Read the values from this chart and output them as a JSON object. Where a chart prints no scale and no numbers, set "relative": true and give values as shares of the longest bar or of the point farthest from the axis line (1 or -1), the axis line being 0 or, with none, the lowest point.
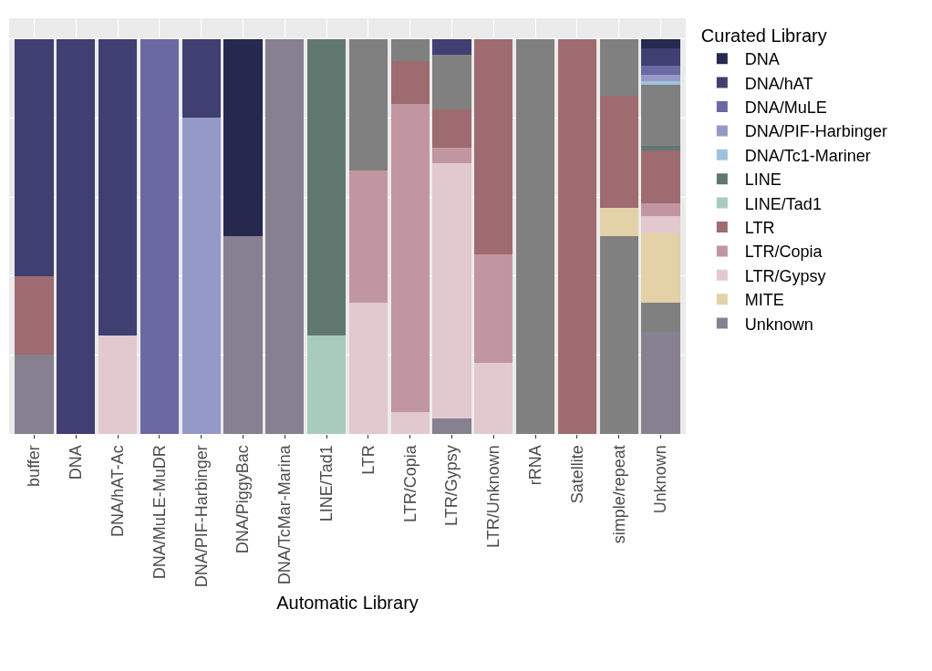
{
  "chart_data": {
    "type": "bar",
    "stacked": true,
    "relative": true,
    "xlabel": "Automatic Library",
    "legend_title": "Curated Library",
    "legend": "right",
    "grid": true,
    "categories": [
      "buffer",
      "DNA",
      "DNA/hAT-Ac",
      "DNA/MuLE-MuDR",
      "DNA/PIF-Harbinger",
      "DNA/PiggyBac",
      "DNA/TcMar-Marina",
      "LINE/Tad1",
      "LTR",
      "LTR/Copia",
      "LTR/Gypsy",
      "LTR/Unknown",
      "rRNA",
      "Satellite",
      "simple/repeat",
      "Unknown"
    ],
    "series": [
      {
        "name": "Unknown",
        "color": "#878090",
        "values": [
          0.2,
          null,
          null,
          null,
          null,
          0.5,
          1,
          null,
          null,
          null,
          0.039,
          null,
          null,
          null,
          null,
          0.258
        ]
      },
      {
        "color": "#808080",
        "values": [
          null,
          null,
          null,
          null,
          null,
          null,
          null,
          null,
          null,
          null,
          null,
          null,
          1,
          null,
          0.5,
          0.074
        ]
      },
      {
        "name": "MITE",
        "color": "#e3d1a7",
        "values": [
          null,
          null,
          null,
          null,
          null,
          null,
          null,
          null,
          null,
          null,
          null,
          null,
          null,
          null,
          0.073,
          0.175
        ]
      },
      {
        "name": "LTR/Gypsy",
        "color": "#e2c9cf",
        "values": [
          null,
          null,
          0.25,
          null,
          null,
          null,
          null,
          null,
          0.333,
          0.055,
          0.647,
          0.181,
          null,
          null,
          null,
          0.044
        ]
      },
      {
        "name": "LTR/Copia",
        "color": "#c196a0",
        "values": [
          null,
          null,
          null,
          null,
          null,
          null,
          null,
          null,
          0.333,
          0.78,
          0.039,
          0.274,
          null,
          null,
          null,
          0.034
        ]
      },
      {
        "name": "LTR",
        "color": "#9e6b70",
        "values": [
          0.2,
          null,
          null,
          null,
          null,
          null,
          null,
          null,
          null,
          0.11,
          0.096,
          0.545,
          null,
          1,
          0.284,
          0.132
        ]
      },
      {
        "name": "LINE/Tad1",
        "color": "#a9cbbd",
        "values": [
          null,
          null,
          null,
          null,
          null,
          null,
          null,
          0.25,
          null,
          null,
          null,
          null,
          null,
          null,
          null,
          null
        ]
      },
      {
        "name": "LINE",
        "color": "#607870",
        "values": [
          null,
          null,
          null,
          null,
          null,
          null,
          null,
          0.75,
          null,
          null,
          null,
          null,
          null,
          null,
          null,
          0.012
        ]
      },
      {
        "color": "#808080",
        "values": [
          null,
          null,
          null,
          null,
          null,
          null,
          null,
          null,
          0.334,
          0.055,
          0.14,
          null,
          null,
          null,
          0.143,
          0.156
        ]
      },
      {
        "name": "DNA/Tc1-Mariner",
        "color": "#9fc3de",
        "values": [
          null,
          null,
          null,
          null,
          null,
          null,
          null,
          null,
          null,
          null,
          null,
          null,
          null,
          null,
          null,
          0.009
        ]
      },
      {
        "name": "DNA/PIF-Harbinger",
        "color": "#9599c8",
        "values": [
          null,
          null,
          null,
          null,
          0.8,
          null,
          null,
          null,
          null,
          null,
          null,
          null,
          null,
          null,
          null,
          0.015
        ]
      },
      {
        "name": "DNA/MuLE",
        "color": "#6a69a3",
        "values": [
          null,
          null,
          null,
          1,
          null,
          null,
          null,
          null,
          null,
          null,
          null,
          null,
          null,
          null,
          null,
          0.023
        ]
      },
      {
        "name": "DNA/hAT",
        "color": "#3f3f72",
        "values": [
          0.6,
          1,
          0.75,
          null,
          0.2,
          null,
          null,
          null,
          null,
          null,
          0.039,
          null,
          null,
          null,
          null,
          0.044
        ]
      },
      {
        "name": "DNA",
        "color": "#262850",
        "values": [
          null,
          null,
          null,
          null,
          null,
          0.5,
          null,
          null,
          null,
          null,
          null,
          null,
          null,
          null,
          null,
          0.024
        ]
      }
    ]
  }
}
